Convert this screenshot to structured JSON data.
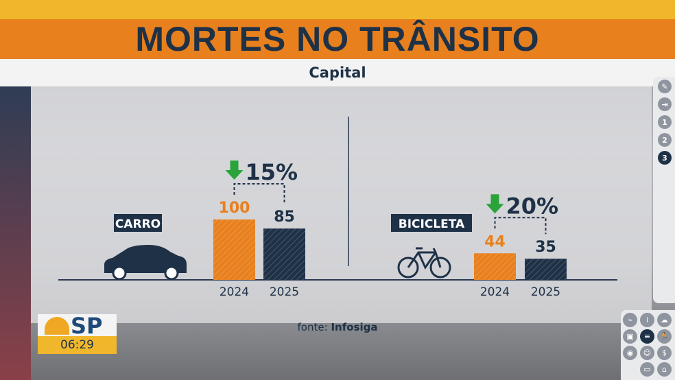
{
  "header": {
    "title": "MORTES NO TRÂNSITO",
    "subtitle": "Capital"
  },
  "source": {
    "prefix": "fonte: ",
    "name": "Infosiga"
  },
  "logo": {
    "text": "SP",
    "time": "06:29"
  },
  "side_buttons": [
    {
      "icon": "pencil-icon"
    },
    {
      "icon": "input-icon"
    },
    {
      "label": "1"
    },
    {
      "label": "2"
    },
    {
      "label": "3"
    }
  ],
  "colors": {
    "orange": "#e8801e",
    "navy": "#1e3147",
    "green": "#2aa33a"
  },
  "chart_data": [
    {
      "type": "bar",
      "label": "CARRO",
      "icon": "car-icon",
      "categories": [
        "2024",
        "2025"
      ],
      "values": [
        100,
        85
      ],
      "change": "15%",
      "change_direction": "down"
    },
    {
      "type": "bar",
      "label": "BICICLETA",
      "icon": "bicycle-icon",
      "categories": [
        "2024",
        "2025"
      ],
      "values": [
        44,
        35
      ],
      "change": "20%",
      "change_direction": "down"
    }
  ]
}
